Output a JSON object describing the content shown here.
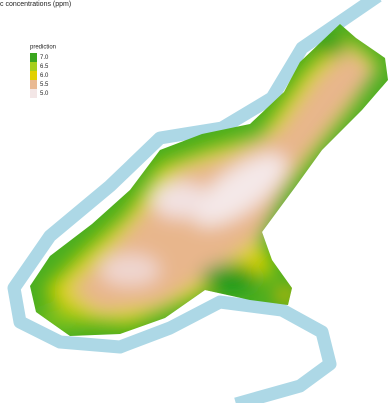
{
  "title": "c concentrations (ppm)",
  "legend": {
    "title": "prediction",
    "items": [
      {
        "label": "7.0",
        "color": "#3aa61e"
      },
      {
        "label": "6.5",
        "color": "#a6cf1c"
      },
      {
        "label": "6.0",
        "color": "#e2d000"
      },
      {
        "label": "5.5",
        "color": "#e9b993"
      },
      {
        "label": "5.0",
        "color": "#f3e6e6"
      }
    ]
  }
}
